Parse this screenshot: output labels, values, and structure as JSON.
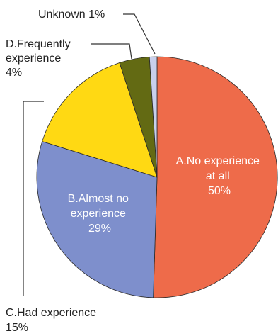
{
  "chart_data": {
    "type": "pie",
    "title": "",
    "start_angle_deg": 0,
    "direction": "clockwise",
    "slices": [
      {
        "label": "A.No experience at all",
        "value": 50,
        "display": [
          "A.No experience",
          "at all",
          "50%"
        ],
        "color": "#ee6b4a",
        "label_style": "inside"
      },
      {
        "label": "B.Almost no experience",
        "value": 29,
        "display": [
          "B.Almost no",
          "experience",
          "29%"
        ],
        "color": "#7e8fcc",
        "label_style": "inside"
      },
      {
        "label": "C.Had experience",
        "value": 15,
        "display": [
          "C.Had experience",
          "15%"
        ],
        "color": "#ffd913",
        "label_style": "outside"
      },
      {
        "label": "D.Frequently experience",
        "value": 4,
        "display": [
          "D.Frequently",
          "experience",
          "4%"
        ],
        "color": "#636a13",
        "label_style": "outside"
      },
      {
        "label": "Unknown",
        "value": 1,
        "display": [
          "Unknown 1%"
        ],
        "color": "#c8d0ec",
        "label_style": "outside"
      }
    ]
  }
}
